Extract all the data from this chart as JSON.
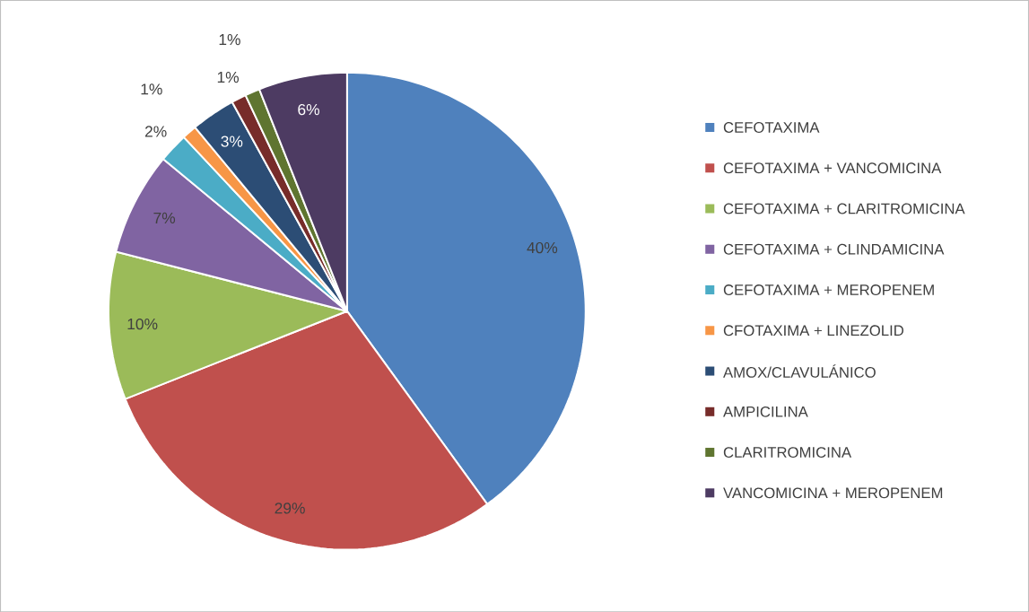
{
  "chart_data": {
    "type": "pie",
    "categories": [
      "CEFOTAXIMA",
      "CEFOTAXIMA + VANCOMICINA",
      "CEFOTAXIMA + CLARITROMICINA",
      "CEFOTAXIMA + CLINDAMICINA",
      "CEFOTAXIMA + MEROPENEM",
      "CFOTAXIMA + LINEZOLID",
      "AMOX/CLAVULÁNICO",
      "AMPICILINA",
      "CLARITROMICINA",
      "VANCOMICINA + MEROPENEM"
    ],
    "values": [
      40,
      29,
      10,
      7,
      2,
      1,
      3,
      1,
      1,
      6
    ],
    "colors": [
      "#4f81bd",
      "#c0504d",
      "#9bbb59",
      "#8064a2",
      "#4bacc6",
      "#f79646",
      "#2c4d75",
      "#772c2a",
      "#5f7530",
      "#4d3b62"
    ],
    "value_labels": [
      "40%",
      "29%",
      "10%",
      "7%",
      "2%",
      "1%",
      "3%",
      "1%",
      "1%",
      "6%"
    ],
    "legend": "right"
  }
}
